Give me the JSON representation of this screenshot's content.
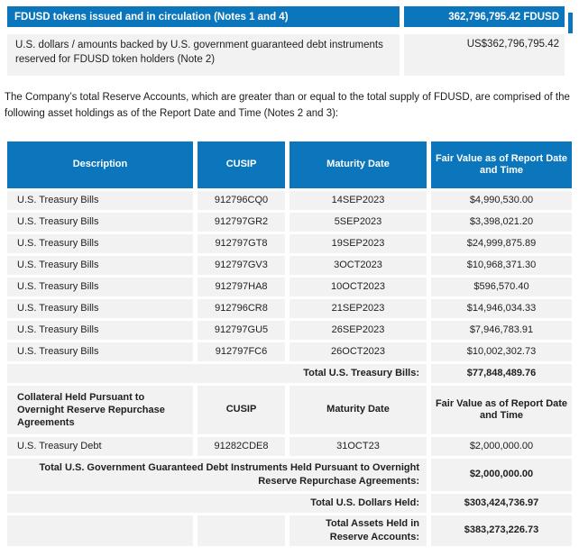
{
  "colors": {
    "accent_blue": "#0b76bb",
    "row_gray": "#f2f2f2",
    "text_dark": "#1f1f1f"
  },
  "summary": {
    "tokens_label": "FDUSD tokens issued and in circulation (Notes 1 and 4)",
    "tokens_value": "362,796,795.42 FDUSD",
    "backing_label": "U.S. dollars / amounts backed by U.S. government guaranteed debt instruments reserved for FDUSD token holders (Note 2)",
    "backing_value": "US$362,796,795.42"
  },
  "paragraph": "The Company’s total Reserve Accounts, which are greater than or equal to the total supply of FDUSD, are comprised of the following asset holdings as of the Report Date and Time (Notes 2 and 3):",
  "table": {
    "headers": {
      "description": "Description",
      "cusip": "CUSIP",
      "maturity": "Maturity Date",
      "fair_value": "Fair Value as of Report Date and Time"
    },
    "rows": [
      {
        "description": "U.S. Treasury Bills",
        "cusip": "912796CQ0",
        "maturity": "14SEP2023",
        "value": "$4,990,530.00"
      },
      {
        "description": "U.S. Treasury Bills",
        "cusip": "912797GR2",
        "maturity": "5SEP2023",
        "value": "$3,398,021.20"
      },
      {
        "description": "U.S. Treasury Bills",
        "cusip": "912797GT8",
        "maturity": "19SEP2023",
        "value": "$24,999,875.89"
      },
      {
        "description": "U.S. Treasury Bills",
        "cusip": "912797GV3",
        "maturity": "3OCT2023",
        "value": "$10,968,371.30"
      },
      {
        "description": "U.S. Treasury Bills",
        "cusip": "912797HA8",
        "maturity": "10OCT2023",
        "value": "$596,570.40"
      },
      {
        "description": "U.S. Treasury Bills",
        "cusip": "912796CR8",
        "maturity": "21SEP2023",
        "value": "$14,946,034.33"
      },
      {
        "description": "U.S. Treasury Bills",
        "cusip": "912797GU5",
        "maturity": "26SEP2023",
        "value": "$7,946,783.91"
      },
      {
        "description": "U.S. Treasury Bills",
        "cusip": "912797FC6",
        "maturity": "26OCT2023",
        "value": "$10,002,302.73"
      }
    ],
    "total_treasury_bills": {
      "label": "Total U.S. Treasury Bills:",
      "value": "$77,848,489.76"
    },
    "collateral_header": {
      "description": "Collateral Held Pursuant to Overnight Reserve Repurchase Agreements",
      "cusip": "CUSIP",
      "maturity": "Maturity Date",
      "fair_value": "Fair Value as of Report Date and Time"
    },
    "collateral_rows": [
      {
        "description": "U.S. Treasury Debt",
        "cusip": "91282CDE8",
        "maturity": "31OCT23",
        "value": "$2,000,000.00"
      }
    ],
    "total_gov_debt": {
      "label": "Total U.S. Government Guaranteed Debt Instruments Held Pursuant to Overnight Reserve Repurchase Agreements:",
      "value": "$2,000,000.00"
    },
    "total_dollars_held": {
      "label": "Total U.S. Dollars Held:",
      "value": "$303,424,736.97"
    },
    "total_assets": {
      "label": "Total Assets Held in Reserve Accounts:",
      "value": "$383,273,226.73"
    }
  }
}
